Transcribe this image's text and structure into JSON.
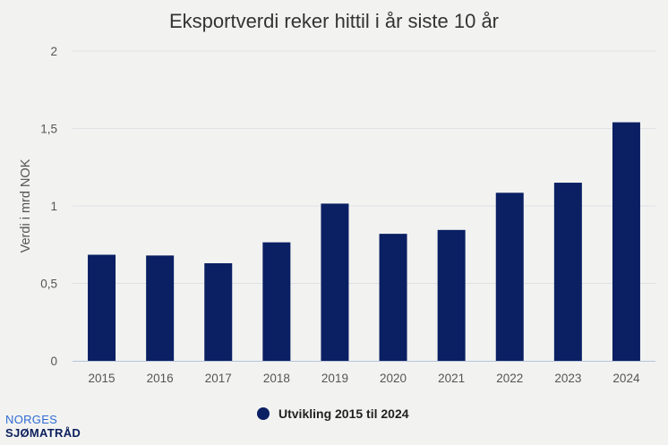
{
  "chart_data": {
    "type": "bar",
    "title": "Eksportverdi reker hittil i år siste 10 år",
    "ylabel": "Verdi i mrd NOK",
    "xlabel": "",
    "categories": [
      "2015",
      "2016",
      "2017",
      "2018",
      "2019",
      "2020",
      "2021",
      "2022",
      "2023",
      "2024"
    ],
    "series": [
      {
        "name": "Utvikling 2015 til 2024",
        "values": [
          0.685,
          0.68,
          0.63,
          0.765,
          1.015,
          0.82,
          0.845,
          1.085,
          1.15,
          1.54
        ],
        "color": "#0b1f63"
      }
    ],
    "ylim": [
      0,
      2
    ],
    "yticks": [
      0,
      0.5,
      1,
      1.5,
      2
    ],
    "ytick_labels": [
      "0",
      "0,5",
      "1",
      "1,5",
      "2"
    ],
    "grid": true,
    "legend": "bottom-center"
  },
  "logo": {
    "line1": "NORGES",
    "line2": "SJØMATRÅD"
  }
}
